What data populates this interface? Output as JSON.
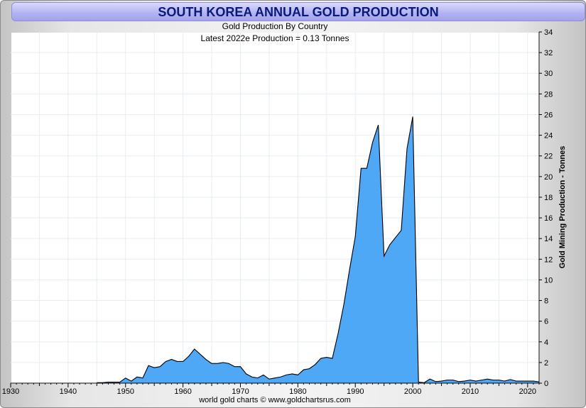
{
  "chart_data": {
    "type": "area",
    "title": "SOUTH KOREA ANNUAL GOLD PRODUCTION",
    "subtitle": "Gold Production By Country",
    "annotation": "Latest 2022e  Production = 0.13 Tonnes",
    "ylabel": "Gold Mining Production - Tonnes",
    "source": "world gold charts © www.goldchartsrus.com",
    "xlim": [
      1930,
      2022
    ],
    "ylim": [
      0,
      34
    ],
    "x_ticks": [
      "1930",
      "1940",
      "1950",
      "1960",
      "1970",
      "1980",
      "1990",
      "2000",
      "2010",
      "2020"
    ],
    "y_ticks": [
      "0",
      "2",
      "4",
      "6",
      "8",
      "10",
      "12",
      "14",
      "16",
      "18",
      "20",
      "22",
      "24",
      "26",
      "28",
      "30",
      "32",
      "34"
    ],
    "grid": true,
    "fill_color": "#4ea8f5",
    "line_color": "#000000",
    "x": [
      1945,
      1946,
      1947,
      1948,
      1949,
      1950,
      1951,
      1952,
      1953,
      1954,
      1955,
      1956,
      1957,
      1958,
      1959,
      1960,
      1961,
      1962,
      1963,
      1964,
      1965,
      1966,
      1967,
      1968,
      1969,
      1970,
      1971,
      1972,
      1973,
      1974,
      1975,
      1976,
      1977,
      1978,
      1979,
      1980,
      1981,
      1982,
      1983,
      1984,
      1985,
      1986,
      1987,
      1988,
      1989,
      1990,
      1991,
      1992,
      1993,
      1994,
      1995,
      1996,
      1997,
      1998,
      1999,
      2000,
      2001,
      2002,
      2003,
      2004,
      2005,
      2006,
      2007,
      2008,
      2009,
      2010,
      2011,
      2012,
      2013,
      2014,
      2015,
      2016,
      2017,
      2018,
      2019,
      2020,
      2021,
      2022
    ],
    "values": [
      0.05,
      0.05,
      0.1,
      0.1,
      0.1,
      0.5,
      0.2,
      0.6,
      0.5,
      1.7,
      1.5,
      1.6,
      2.1,
      2.3,
      2.1,
      2.1,
      2.6,
      3.3,
      2.8,
      2.3,
      1.9,
      1.9,
      2.0,
      1.9,
      1.6,
      1.6,
      0.9,
      0.6,
      0.5,
      0.8,
      0.4,
      0.5,
      0.6,
      0.8,
      0.9,
      0.8,
      1.3,
      1.4,
      1.8,
      2.4,
      2.5,
      2.4,
      4.8,
      7.6,
      11.0,
      14.2,
      20.8,
      20.8,
      23.3,
      25.0,
      12.3,
      13.4,
      14.1,
      14.8,
      22.7,
      25.8,
      0.1,
      0.05,
      0.4,
      0.15,
      0.2,
      0.3,
      0.3,
      0.15,
      0.2,
      0.3,
      0.2,
      0.3,
      0.4,
      0.3,
      0.3,
      0.2,
      0.35,
      0.2,
      0.2,
      0.2,
      0.2,
      0.13
    ]
  }
}
